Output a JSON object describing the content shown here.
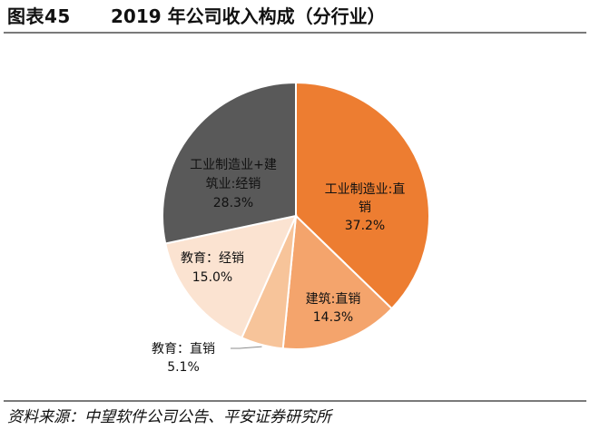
{
  "header": {
    "figure_label": "图表45",
    "title": "2019 年公司收入构成（分行业）"
  },
  "footer": {
    "source": "资料来源：中望软件公司公告、平安证券研究所"
  },
  "colors": {
    "rule": "#7a7a7a",
    "slice_1": "#ed7d31",
    "slice_2": "#f4a46c",
    "slice_3": "#f7c49a",
    "slice_4": "#fbe3d1",
    "slice_5": "#595959"
  },
  "chart_data": {
    "type": "pie",
    "title": "",
    "slices": [
      {
        "name": "工业制造业:直销",
        "value": 37.2,
        "value_label": "37.2%",
        "label_lines": [
          "工业制造业:直",
          "销",
          "37.2%"
        ],
        "color": "#ed7d31"
      },
      {
        "name": "建筑:直销",
        "value": 14.3,
        "value_label": "14.3%",
        "label_lines": [
          "建筑:直销",
          "14.3%"
        ],
        "color": "#f4a46c"
      },
      {
        "name": "教育：直销",
        "value": 5.1,
        "value_label": "5.1%",
        "label_lines": [
          "教育：直销",
          "5.1%"
        ],
        "color": "#f7c49a"
      },
      {
        "name": "教育：经销",
        "value": 15.0,
        "value_label": "15.0%",
        "label_lines": [
          "教育：经销",
          "15.0%"
        ],
        "color": "#fbe3d1"
      },
      {
        "name": "工业制造业+建筑业:经销",
        "value": 28.3,
        "value_label": "28.3%",
        "label_lines": [
          "工业制造业+建",
          "筑业:经销",
          "28.3%"
        ],
        "color": "#595959"
      }
    ]
  }
}
